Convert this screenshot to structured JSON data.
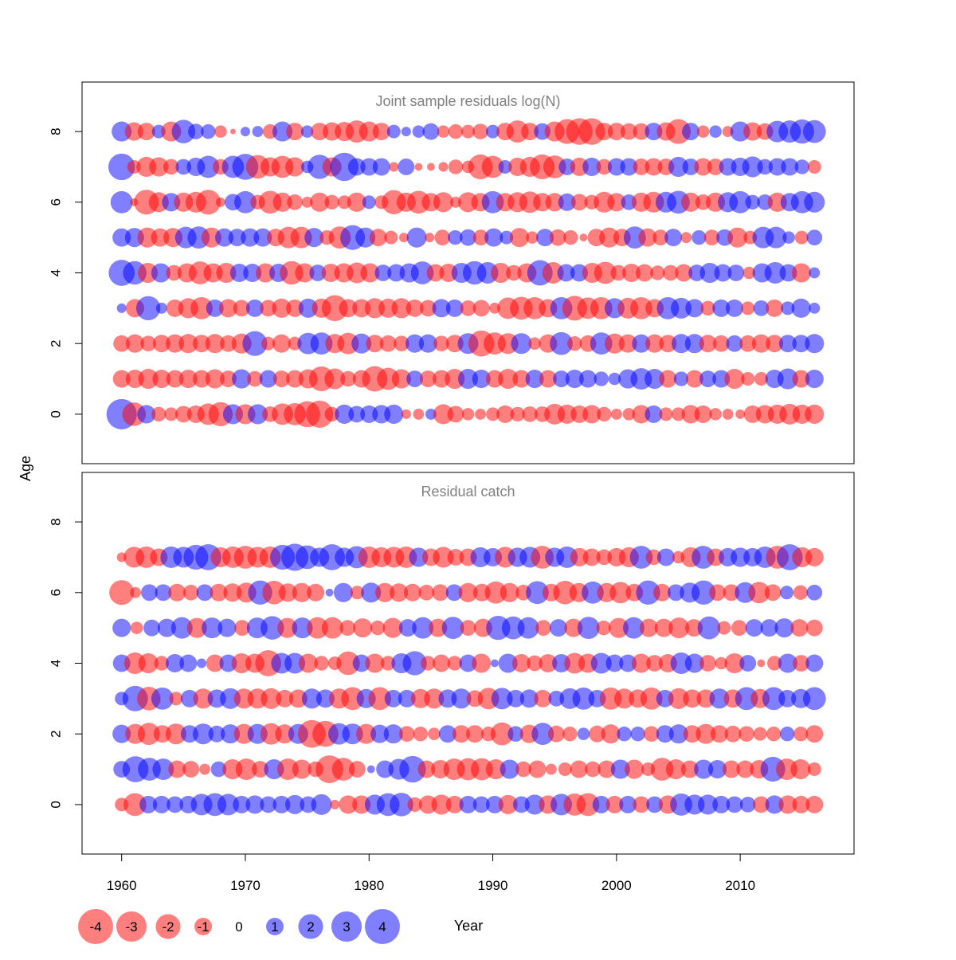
{
  "chart_data": [
    {
      "type": "bubble",
      "title": "Joint sample residuals log(N)",
      "xlabel": "Year",
      "ylabel": "Age",
      "xlim": [
        1956.8,
        2019.2
      ],
      "ylim": [
        -1.4,
        9.4
      ],
      "years": [
        1960,
        2016
      ],
      "ages": [
        0,
        1,
        2,
        3,
        4,
        5,
        6,
        7,
        8
      ],
      "rows": {
        "8": [
          1.3,
          -1.1,
          -1.0,
          0.6,
          -1.3,
          1.8,
          0.8,
          0.7,
          -0.5,
          -0.1,
          0.3,
          0.4,
          -0.7,
          1.3,
          -1.0,
          0.5,
          -1.0,
          -1.1,
          -1.2,
          -1.6,
          -1.3,
          -1.0,
          0.6,
          0.3,
          0.5,
          0.9,
          -0.5,
          -0.7,
          -0.6,
          -0.8,
          0.6,
          -1.0,
          -1.6,
          -1.0,
          0.9,
          -1.3,
          -2.0,
          -2.3,
          -2.3,
          -1.0,
          -1.0,
          -0.9,
          -0.9,
          1.0,
          -1.1,
          -2.0,
          1.0,
          -0.5,
          0.5,
          -0.4,
          1.3,
          -1.1,
          -0.9,
          1.5,
          1.6,
          1.9,
          1.7
        ],
        "7": [
          2.3,
          -0.6,
          -1.3,
          -1.2,
          -0.8,
          0.8,
          1.1,
          1.6,
          -0.8,
          1.6,
          2.2,
          -1.8,
          -1.2,
          -1.6,
          -1.2,
          0.5,
          1.9,
          -1.2,
          2.6,
          1.0,
          1.0,
          1.0,
          -0.3,
          0.9,
          -0.2,
          -0.2,
          -0.3,
          -0.7,
          -0.5,
          -2.0,
          -1.6,
          0.6,
          -1.1,
          -1.3,
          -2.0,
          -1.7,
          0.9,
          -1.1,
          1.1,
          -0.8,
          1.0,
          1.0,
          -0.9,
          -1.0,
          -0.9,
          1.3,
          0.9,
          -1.0,
          -0.9,
          1.0,
          1.1,
          1.4,
          0.8,
          1.0,
          1.0,
          0.7,
          -0.6
        ],
        "6": [
          1.6,
          -0.2,
          -2.0,
          -1.3,
          1.1,
          -1.2,
          -1.4,
          -2.0,
          -0.3,
          0.9,
          1.6,
          -0.7,
          -1.7,
          -1.2,
          -0.8,
          -0.4,
          -1.2,
          -0.7,
          -0.6,
          -1.2,
          0.6,
          -0.6,
          -1.9,
          -1.2,
          -1.7,
          -1.1,
          -1.3,
          -0.4,
          -1.3,
          -1.1,
          1.6,
          -1.1,
          -1.3,
          -1.5,
          -1.1,
          -1.1,
          1.0,
          -0.9,
          -0.7,
          -1.4,
          -1.1,
          0.8,
          -1.2,
          -1.4,
          1.4,
          1.7,
          -1.2,
          -0.8,
          -1.2,
          1.3,
          1.6,
          0.7,
          0.8,
          -1.2,
          1.1,
          1.6,
          1.4
        ],
        "5": [
          1.1,
          1.2,
          -1.3,
          -1.1,
          -1.2,
          1.5,
          1.6,
          -1.3,
          1.1,
          1.0,
          1.1,
          1.1,
          -1.0,
          -1.5,
          -1.5,
          1.2,
          -0.7,
          -1.6,
          2.0,
          1.3,
          -1.0,
          -0.6,
          -0.3,
          1.3,
          -0.3,
          -0.8,
          0.7,
          0.9,
          -0.8,
          1.1,
          0.6,
          -1.2,
          -0.5,
          1.0,
          -0.9,
          -0.7,
          -0.2,
          -1.0,
          -1.3,
          -1.0,
          1.6,
          -1.1,
          -0.8,
          1.0,
          -0.4,
          0.7,
          -0.8,
          0.9,
          -1.3,
          -0.6,
          1.5,
          1.5,
          0.5,
          -0.6,
          0.8
        ],
        "4": [
          2.2,
          1.8,
          -1.3,
          1.2,
          -0.8,
          -1.2,
          -1.7,
          -1.2,
          -1.3,
          1.1,
          1.1,
          -1.2,
          1.1,
          -1.8,
          -1.2,
          0.9,
          -1.1,
          -1.2,
          -1.4,
          -1.2,
          0.9,
          1.0,
          1.2,
          1.7,
          -1.0,
          -1.1,
          1.3,
          1.8,
          1.5,
          -1.3,
          -0.8,
          -1.2,
          2.1,
          -1.5,
          1.0,
          1.0,
          -1.3,
          -1.6,
          -0.8,
          -1.1,
          -1.0,
          -0.7,
          -0.8,
          -1.0,
          0.9,
          1.3,
          1.0,
          0.9,
          -0.5,
          1.2,
          1.5,
          1.0,
          -1.2,
          0.4
        ],
        "3": [
          0.3,
          -1.1,
          1.9,
          0.4,
          -1.0,
          -1.3,
          -1.6,
          1.0,
          -1.1,
          -0.9,
          1.0,
          -0.9,
          -1.2,
          -1.0,
          1.2,
          -1.2,
          -2.2,
          -1.1,
          -1.1,
          -1.3,
          -1.2,
          -1.3,
          -1.0,
          -0.9,
          1.1,
          1.0,
          -0.8,
          -0.9,
          -0.4,
          -1.5,
          -1.7,
          -1.6,
          -1.1,
          1.6,
          -2.0,
          -1.5,
          -1.6,
          1.3,
          -1.4,
          -1.6,
          -1.1,
          1.6,
          1.4,
          1.1,
          -0.7,
          1.0,
          1.0,
          -0.6,
          0.8,
          -1.0,
          0.6,
          1.2,
          0.4
        ],
        "2": [
          -0.9,
          -1.1,
          -0.8,
          -1.0,
          -1.1,
          -1.2,
          -1.0,
          -1.2,
          -0.9,
          -1.3,
          2.0,
          -0.6,
          -1.1,
          -0.6,
          1.5,
          1.6,
          -1.2,
          -1.5,
          1.3,
          -1.0,
          -0.9,
          -0.8,
          1.1,
          1.1,
          -0.8,
          -1.0,
          1.4,
          -2.2,
          -1.6,
          -1.4,
          1.4,
          -0.5,
          -1.1,
          1.7,
          -0.7,
          -0.9,
          1.6,
          -1.3,
          -1.1,
          1.1,
          -1.1,
          -1.0,
          1.2,
          1.2,
          -1.0,
          -0.9,
          0.9,
          -0.9,
          -1.1,
          -1.0,
          1.0,
          1.0,
          1.2
        ],
        "1": [
          -1.0,
          -1.1,
          -1.3,
          -1.1,
          -1.0,
          -1.1,
          -1.0,
          -1.2,
          -0.9,
          1.2,
          -0.8,
          1.0,
          -0.9,
          -1.0,
          -1.2,
          -2.0,
          -1.4,
          -0.8,
          -1.0,
          -2.1,
          -1.6,
          -1.2,
          0.9,
          -0.9,
          -1.0,
          -1.3,
          1.3,
          1.1,
          -1.0,
          -1.3,
          -1.0,
          1.1,
          -1.0,
          0.9,
          1.1,
          1.0,
          0.7,
          0.5,
          1.2,
          1.5,
          1.3,
          -1.0,
          0.7,
          -1.0,
          0.9,
          1.0,
          -1.3,
          -0.6,
          -0.6,
          1.1,
          1.4,
          -1.0,
          1.1
        ],
        "0": [
          3.0,
          -1.8,
          1.1,
          -0.7,
          -0.6,
          -0.9,
          -1.0,
          -1.5,
          -1.9,
          1.3,
          -1.3,
          1.3,
          -0.8,
          -1.5,
          -1.6,
          -2.2,
          -2.4,
          -0.7,
          1.2,
          0.9,
          1.0,
          1.1,
          1.2,
          -0.3,
          -0.4,
          0.4,
          -1.3,
          -0.9,
          -0.5,
          -0.4,
          -0.6,
          -1.0,
          -0.7,
          -0.8,
          -0.8,
          -1.4,
          -1.2,
          -1.0,
          -1.1,
          -0.7,
          -0.4,
          -0.5,
          -1.1,
          1.0,
          -0.6,
          -0.6,
          -1.1,
          -1.0,
          -0.5,
          -0.4,
          -0.3,
          -1.0,
          -1.1,
          -1.2,
          -1.4,
          -1.2,
          -1.2
        ]
      },
      "legend": {
        "values": [
          -4,
          -3,
          -2,
          -1,
          0,
          1,
          2,
          3,
          4
        ]
      }
    },
    {
      "type": "bubble",
      "title": "Residual catch",
      "xlabel": "Year",
      "ylabel": "Age",
      "xlim": [
        1956.8,
        2019.2
      ],
      "ylim": [
        -1.4,
        9.4
      ],
      "years": [
        1960,
        2016
      ],
      "ages": [
        0,
        1,
        2,
        3,
        4,
        5,
        6,
        7
      ],
      "rows": {
        "7": [
          -0.3,
          -1.4,
          -1.5,
          -1.0,
          1.5,
          1.4,
          2.0,
          2.2,
          -1.3,
          -1.5,
          -1.7,
          -1.4,
          -1.5,
          2.0,
          2.4,
          1.8,
          1.2,
          2.2,
          1.2,
          1.6,
          -1.5,
          -1.3,
          -1.4,
          -1.5,
          1.2,
          -1.0,
          -1.4,
          -0.9,
          -1.0,
          1.3,
          1.1,
          -1.4,
          1.2,
          1.4,
          -1.7,
          1.2,
          1.5,
          -1.1,
          -1.0,
          -0.8,
          -1.1,
          -1.3,
          1.7,
          -0.8,
          1.0,
          -0.5,
          -1.3,
          1.7,
          -1.0,
          1.1,
          1.2,
          1.1,
          1.5,
          -1.7,
          2.2,
          -1.3,
          -1.1
        ],
        "6": [
          -2.0,
          -0.4,
          0.9,
          0.9,
          -1.0,
          -0.8,
          0.9,
          -1.0,
          -1.1,
          -1.3,
          1.9,
          -1.8,
          -1.1,
          -1.2,
          -1.0,
          0.2,
          1.2,
          -0.6,
          1.3,
          -1.2,
          -1.1,
          -1.0,
          -0.8,
          -0.9,
          0.9,
          -1.2,
          -1.0,
          -1.6,
          -1.2,
          -0.8,
          1.7,
          -1.0,
          -1.8,
          -1.2,
          1.6,
          -1.2,
          -1.5,
          -1.0,
          1.9,
          -1.0,
          0.9,
          1.3,
          1.9,
          -0.9,
          -0.9,
          1.4,
          -1.5,
          -0.9,
          0.6,
          -0.7,
          0.8
        ],
        "5": [
          1.1,
          -0.5,
          0.9,
          1.1,
          1.5,
          -1.3,
          1.4,
          1.1,
          -0.8,
          1.4,
          1.8,
          -1.3,
          1.4,
          -1.5,
          -1.5,
          -0.8,
          -1.2,
          -0.7,
          -1.3,
          1.0,
          1.5,
          -1.1,
          1.6,
          -0.8,
          -1.1,
          1.9,
          1.7,
          1.5,
          -0.8,
          1.0,
          -1.1,
          1.6,
          -0.7,
          -1.3,
          1.5,
          -1.1,
          -1.1,
          -1.4,
          -1.0,
          1.7,
          -0.6,
          -0.8,
          1.0,
          1.0,
          1.2,
          -1.0,
          -0.9
        ],
        "4": [
          1.0,
          -1.5,
          -1.3,
          -0.7,
          1.1,
          1.0,
          0.3,
          -1.0,
          1.0,
          -1.3,
          -1.2,
          -2.2,
          1.4,
          1.4,
          -1.2,
          -0.7,
          -0.6,
          -1.8,
          1.0,
          -1.2,
          -0.7,
          1.3,
          1.9,
          -0.7,
          -1.0,
          -0.7,
          1.0,
          -1.2,
          0.2,
          1.2,
          -1.1,
          -0.8,
          -1.1,
          1.1,
          -1.4,
          -1.2,
          1.4,
          1.0,
          1.0,
          -1.2,
          -0.9,
          -1.1,
          1.5,
          1.2,
          -0.9,
          -0.5,
          -1.3,
          0.9,
          -0.2,
          -0.7,
          1.2,
          -0.9,
          1.0
        ],
        "3": [
          0.6,
          2.1,
          -1.8,
          1.6,
          -0.6,
          1.0,
          -1.3,
          1.1,
          1.4,
          -1.3,
          -1.3,
          -1.4,
          -1.0,
          -1.1,
          1.3,
          1.1,
          -1.3,
          -1.7,
          1.2,
          -1.7,
          1.0,
          1.0,
          -1.2,
          -1.3,
          1.1,
          1.3,
          -0.9,
          -1.5,
          1.5,
          1.0,
          1.1,
          -1.0,
          0.8,
          1.4,
          1.6,
          1.0,
          -1.6,
          -1.3,
          -1.1,
          -1.6,
          1.0,
          -1.4,
          -1.1,
          -1.1,
          1.3,
          -1.1,
          1.7,
          -1.2,
          1.7,
          1.0,
          1.2,
          1.7
        ],
        "2": [
          1.1,
          -1.3,
          -1.6,
          -1.0,
          -1.4,
          1.0,
          1.4,
          0.9,
          1.2,
          -1.3,
          1.3,
          -1.5,
          -1.2,
          1.3,
          -2.5,
          -2.2,
          1.5,
          1.4,
          -1.3,
          1.1,
          1.2,
          -0.8,
          -0.7,
          -0.5,
          1.0,
          -1.0,
          -1.0,
          -0.7,
          -1.7,
          0.8,
          -1.1,
          1.6,
          -0.9,
          -0.7,
          0.5,
          -0.9,
          -1.2,
          0.7,
          0.7,
          -0.8,
          1.0,
          1.2,
          -1.0,
          -1.3,
          -1.0,
          -0.9,
          -0.8,
          -0.6,
          -0.7,
          0.7,
          -0.7,
          -1.0
        ],
        "1": [
          0.9,
          2.2,
          1.7,
          1.5,
          -1.0,
          -0.9,
          -0.4,
          0.8,
          -1.3,
          -1.5,
          -0.9,
          1.3,
          -1.5,
          -1.2,
          -0.8,
          -2.5,
          -1.7,
          -0.9,
          0.2,
          1.0,
          1.4,
          2.3,
          -1.0,
          -1.1,
          -1.5,
          -1.6,
          -1.6,
          -1.3,
          1.2,
          -0.8,
          -1.0,
          -0.4,
          -0.6,
          -1.0,
          -0.8,
          -1.0,
          1.2,
          -1.2,
          -0.6,
          -1.7,
          -1.3,
          -1.0,
          1.2,
          1.1,
          -1.0,
          -1.0,
          -1.1,
          2.0,
          -1.5,
          -1.3,
          -0.6
        ],
        "0": [
          -0.6,
          -1.7,
          1.0,
          1.0,
          0.9,
          1.0,
          1.5,
          1.7,
          1.5,
          1.0,
          1.1,
          0.9,
          1.0,
          1.2,
          0.9,
          1.4,
          -0.3,
          -1.1,
          -1.1,
          1.3,
          1.7,
          1.8,
          -0.7,
          -1.1,
          -1.3,
          -1.0,
          1.0,
          0.9,
          1.0,
          -1.2,
          0.9,
          1.3,
          -1.1,
          1.5,
          -1.6,
          -1.7,
          1.0,
          -1.0,
          1.0,
          -0.9,
          0.9,
          -1.1,
          1.6,
          1.3,
          1.3,
          1.0,
          0.9,
          0.8,
          -0.9,
          1.1,
          -1.1,
          -1.0,
          -1.0
        ]
      },
      "legend": {
        "values": [
          -4,
          -3,
          -2,
          -1,
          0,
          1,
          2,
          3,
          4
        ]
      }
    }
  ],
  "labels": {
    "ylabel": "Age",
    "xlabel": "Year",
    "legend_values": [
      "-4",
      "-3",
      "-2",
      "-1",
      "0",
      "1",
      "2",
      "3",
      "4"
    ]
  },
  "colors": {
    "positive_fill": "rgba(0,0,255,0.5)",
    "negative_fill": "rgba(255,0,0,0.5)",
    "title_text": "#808080",
    "axis": "#000000"
  }
}
